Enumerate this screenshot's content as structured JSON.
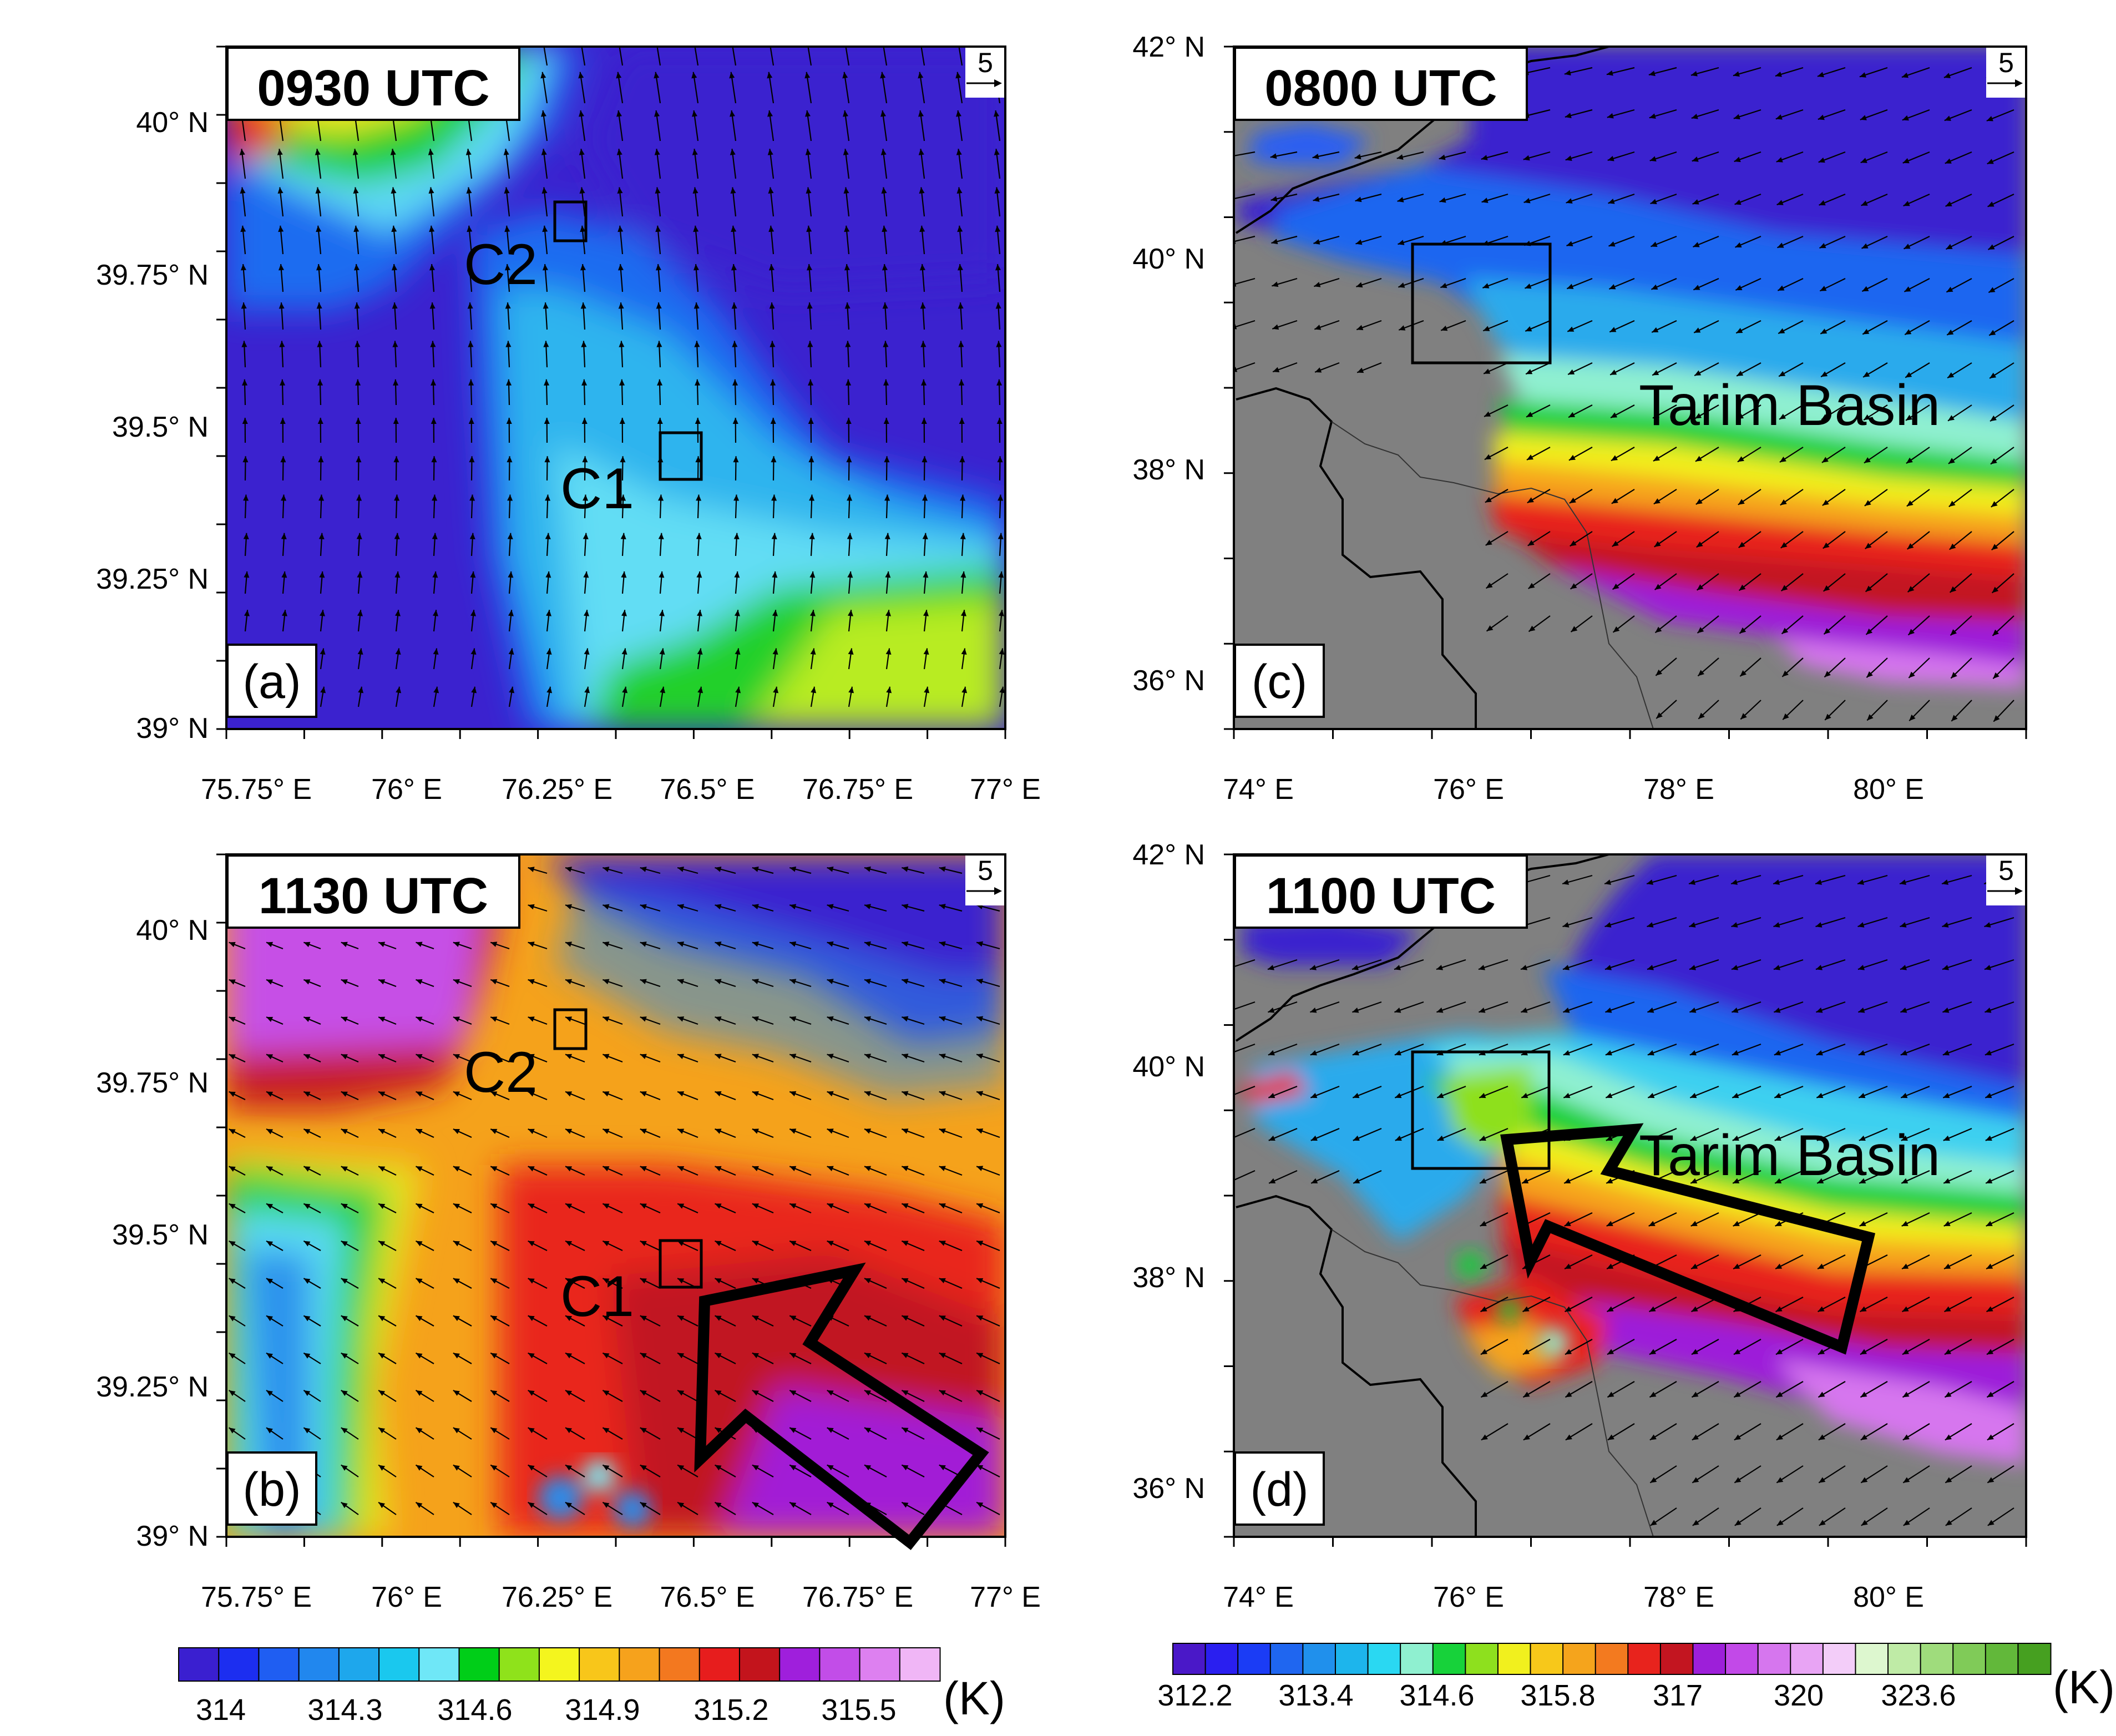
{
  "panels": {
    "a": {
      "time": "0930 UTC",
      "label": "(a)",
      "ref_vector": "5",
      "lat_ticks": [
        "40° N",
        "39.75° N",
        "39.5° N",
        "39.25° N",
        "39° N"
      ],
      "lon_ticks": [
        "75.75° E",
        "76° E",
        "76.25° E",
        "76.5° E",
        "76.75° E",
        "77° E"
      ],
      "sites": [
        "C2",
        "C1"
      ]
    },
    "b": {
      "time": "1130 UTC",
      "label": "(b)",
      "ref_vector": "5",
      "lat_ticks": [
        "40° N",
        "39.75° N",
        "39.5° N",
        "39.25° N",
        "39° N"
      ],
      "lon_ticks": [
        "75.75° E",
        "76° E",
        "76.25° E",
        "76.5° E",
        "76.75° E",
        "77° E"
      ],
      "sites": [
        "C2",
        "C1"
      ]
    },
    "c": {
      "time": "0800 UTC",
      "label": "(c)",
      "ref_vector": "5",
      "lat_ticks": [
        "42° N",
        "40° N",
        "38° N",
        "36° N"
      ],
      "lon_ticks": [
        "74° E",
        "76° E",
        "78° E",
        "80° E"
      ],
      "region": "Tarim Basin"
    },
    "d": {
      "time": "1100 UTC",
      "label": "(d)",
      "ref_vector": "5",
      "lat_ticks": [
        "42° N",
        "40° N",
        "38° N",
        "36° N"
      ],
      "lon_ticks": [
        "74° E",
        "76° E",
        "78° E",
        "80° E"
      ],
      "region": "Tarim Basin"
    }
  },
  "colorbar_left": {
    "labels": [
      "314",
      "314.3",
      "314.6",
      "314.9",
      "315.2",
      "315.5"
    ],
    "unit": "(K)",
    "colors": [
      "#3a1fd0",
      "#1c2ef0",
      "#1f5ef2",
      "#2187ee",
      "#1ea7ec",
      "#1ac8ee",
      "#6fe7f7",
      "#00ce18",
      "#8fe21b",
      "#f4f51e",
      "#f8c61a",
      "#f6a21c",
      "#f3781f",
      "#e71d1d",
      "#c3141c",
      "#9f1fdc",
      "#c24de8",
      "#dd80f0",
      "#f0b6f6"
    ]
  },
  "colorbar_right": {
    "labels": [
      "312.2",
      "313.4",
      "314.6",
      "315.8",
      "317",
      "320",
      "323.6"
    ],
    "unit": "(K)",
    "colors": [
      "#4a18c8",
      "#2a1ff0",
      "#1b3cf5",
      "#1f66f0",
      "#2090ec",
      "#1db5ec",
      "#2ad8f2",
      "#8ff0d0",
      "#17d23a",
      "#8ee01e",
      "#f1f01e",
      "#f7c81a",
      "#f5a41c",
      "#f37a1f",
      "#e8231d",
      "#c31520",
      "#9d1fd9",
      "#c249e8",
      "#d676ee",
      "#e8a4f4",
      "#f3cdf9",
      "#ddf7cf",
      "#bfeba6",
      "#9fdc7c",
      "#80cb58",
      "#62b83a",
      "#46a020"
    ]
  }
}
